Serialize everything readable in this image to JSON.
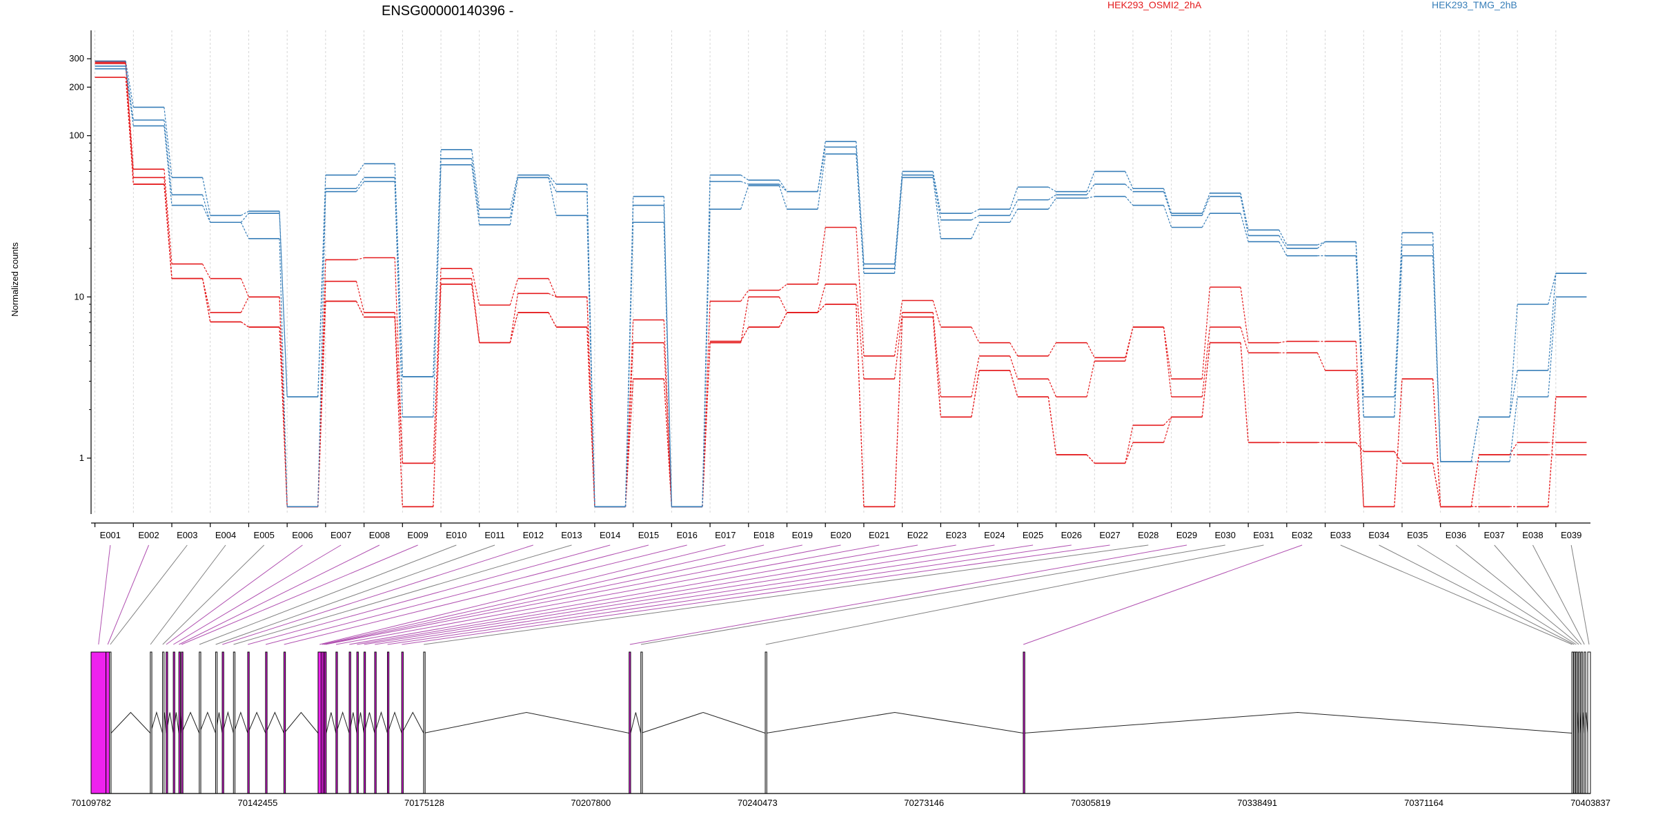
{
  "chart_data": {
    "type": "line",
    "title": "ENSG00000140396 -",
    "ylabel": "Normalized counts",
    "xlabel": "",
    "yscale": "log",
    "ylim": [
      0.45,
      450
    ],
    "yticks": [
      1,
      10,
      100,
      200,
      300
    ],
    "grid": "vertical dotted",
    "legend_placement": "top-right",
    "categories": [
      "E001",
      "E002",
      "E003",
      "E004",
      "E005",
      "E006",
      "E007",
      "E008",
      "E009",
      "E010",
      "E011",
      "E012",
      "E013",
      "E014",
      "E015",
      "E016",
      "E017",
      "E018",
      "E019",
      "E020",
      "E021",
      "E022",
      "E023",
      "E024",
      "E025",
      "E026",
      "E027",
      "E028",
      "E029",
      "E030",
      "E031",
      "E032",
      "E033",
      "E034",
      "E035",
      "E036",
      "E037",
      "E038",
      "E039"
    ],
    "conditions": [
      {
        "name": "HEK293_OSMI2_2hA",
        "color": "#e41a1c"
      },
      {
        "name": "HEK293_TMG_2hB",
        "color": "#377eb8"
      }
    ],
    "series": [
      {
        "condition": 0,
        "values": [
          290,
          62,
          16,
          13,
          10,
          0.5,
          17,
          17.5,
          0.93,
          15,
          8.9,
          13,
          10,
          0.5,
          7.2,
          0.5,
          9.4,
          11,
          12,
          27,
          4.3,
          9.5,
          6.5,
          5.2,
          4.3,
          5.2,
          4.2,
          6.5,
          3.1,
          11.5,
          5.2,
          5.3,
          5.3,
          0.5,
          3.1,
          0.5,
          0.5,
          0.5,
          2.4
        ]
      },
      {
        "condition": 0,
        "values": [
          285,
          55,
          13,
          8,
          10,
          0.5,
          12.5,
          8,
          0.93,
          13,
          5.2,
          10.5,
          10,
          0.5,
          5.2,
          0.5,
          5.2,
          10,
          8,
          12,
          3.1,
          8,
          2.4,
          4.3,
          3.1,
          2.4,
          4,
          6.5,
          2.4,
          6.5,
          4.5,
          4.5,
          3.5,
          0.5,
          3.1,
          0.5,
          0.5,
          0.5,
          2.4
        ]
      },
      {
        "condition": 0,
        "values": [
          280,
          50,
          13,
          7,
          6.5,
          0.5,
          9.4,
          7.5,
          0.5,
          12,
          5.2,
          8,
          6.5,
          0.5,
          3.1,
          0.5,
          5.3,
          6.5,
          8,
          9,
          0.5,
          7.5,
          1.8,
          3.5,
          2.4,
          1.05,
          0.93,
          1.25,
          1.8,
          5.2,
          1.25,
          1.25,
          1.25,
          1.1,
          0.93,
          0.5,
          1.05,
          1.25,
          1.25
        ]
      },
      {
        "condition": 0,
        "values": [
          230,
          50,
          13,
          7,
          6.5,
          0.5,
          9.4,
          7.5,
          0.5,
          12,
          5.2,
          8,
          6.5,
          0.5,
          3.1,
          0.5,
          5.3,
          6.5,
          8,
          9,
          0.5,
          7.5,
          1.8,
          3.5,
          2.4,
          1.05,
          0.93,
          1.6,
          1.8,
          5.2,
          1.25,
          1.25,
          1.25,
          1.1,
          0.93,
          0.5,
          1.05,
          1.05,
          1.05
        ]
      },
      {
        "condition": 1,
        "values": [
          290,
          150,
          55,
          32,
          34,
          2.4,
          57,
          67,
          3.2,
          82,
          35,
          57,
          50,
          0.5,
          42,
          0.5,
          57,
          53,
          45,
          92,
          16,
          60,
          33,
          35,
          48,
          45,
          60,
          47,
          33,
          44,
          26,
          21,
          22,
          2.4,
          25,
          0.95,
          1.8,
          9,
          14
        ]
      },
      {
        "condition": 1,
        "values": [
          270,
          125,
          43,
          29,
          33,
          2.4,
          47,
          55,
          3.2,
          72,
          31,
          55,
          45,
          0.5,
          37,
          0.5,
          52,
          50,
          45,
          85,
          15,
          57,
          30,
          32,
          40,
          43,
          50,
          45,
          32,
          42,
          24,
          20,
          22,
          1.8,
          21,
          0.95,
          1.8,
          3.5,
          14
        ]
      },
      {
        "condition": 1,
        "values": [
          260,
          115,
          37,
          29,
          23,
          0.5,
          45,
          52,
          1.8,
          66,
          28,
          55,
          32,
          0.5,
          29,
          0.5,
          35,
          49,
          35,
          77,
          14,
          55,
          23,
          29,
          35,
          41,
          42,
          37,
          27,
          33,
          22,
          18,
          18,
          1.8,
          18,
          0.95,
          0.95,
          2.4,
          10
        ]
      }
    ],
    "genomic_axis": {
      "ticks": [
        "70109782",
        "70142455",
        "70175128",
        "70207800",
        "70240473",
        "70273146",
        "70305819",
        "70338491",
        "70371164",
        "70403837"
      ],
      "range": [
        70109782,
        70403837
      ]
    },
    "exons": [
      {
        "id": "E001",
        "start": 70109782,
        "end": 70112700,
        "dex": true
      },
      {
        "id": "E002",
        "start": 70112700,
        "end": 70113400,
        "dex": true
      },
      {
        "id": "E003",
        "start": 70113400,
        "end": 70113700,
        "dex": false
      },
      {
        "id": "E004",
        "start": 70121400,
        "end": 70121450,
        "dex": false
      },
      {
        "id": "E005",
        "start": 70123800,
        "end": 70123850,
        "dex": false
      },
      {
        "id": "E006",
        "start": 70124500,
        "end": 70124550,
        "dex": true
      },
      {
        "id": "E007",
        "start": 70125900,
        "end": 70125950,
        "dex": true
      },
      {
        "id": "E008",
        "start": 70127000,
        "end": 70127050,
        "dex": true
      },
      {
        "id": "E009",
        "start": 70127500,
        "end": 70127550,
        "dex": true
      },
      {
        "id": "E010",
        "start": 70131000,
        "end": 70131050,
        "dex": false
      },
      {
        "id": "E011",
        "start": 70134200,
        "end": 70134250,
        "dex": false
      },
      {
        "id": "E012",
        "start": 70135500,
        "end": 70135550,
        "dex": true
      },
      {
        "id": "E013",
        "start": 70137700,
        "end": 70137750,
        "dex": false
      },
      {
        "id": "E014",
        "start": 70140500,
        "end": 70140550,
        "dex": true
      },
      {
        "id": "E015",
        "start": 70144000,
        "end": 70144050,
        "dex": true
      },
      {
        "id": "E016",
        "start": 70147600,
        "end": 70147650,
        "dex": true
      },
      {
        "id": "E017",
        "start": 70154300,
        "end": 70154900,
        "dex": true
      },
      {
        "id": "E018",
        "start": 70154900,
        "end": 70155300,
        "dex": true
      },
      {
        "id": "E019",
        "start": 70155300,
        "end": 70155600,
        "dex": true
      },
      {
        "id": "E020",
        "start": 70155600,
        "end": 70155900,
        "dex": true
      },
      {
        "id": "E021",
        "start": 70157800,
        "end": 70157850,
        "dex": true
      },
      {
        "id": "E022",
        "start": 70160400,
        "end": 70160450,
        "dex": true
      },
      {
        "id": "E023",
        "start": 70161900,
        "end": 70161950,
        "dex": true
      },
      {
        "id": "E024",
        "start": 70163300,
        "end": 70163350,
        "dex": true
      },
      {
        "id": "E025",
        "start": 70165400,
        "end": 70165450,
        "dex": true
      },
      {
        "id": "E026",
        "start": 70167900,
        "end": 70167950,
        "dex": true
      },
      {
        "id": "E027",
        "start": 70170700,
        "end": 70170750,
        "dex": true
      },
      {
        "id": "E028",
        "start": 70175000,
        "end": 70175050,
        "dex": false
      },
      {
        "id": "E029",
        "start": 70215300,
        "end": 70215600,
        "dex": true
      },
      {
        "id": "E030",
        "start": 70217600,
        "end": 70217650,
        "dex": false
      },
      {
        "id": "E031",
        "start": 70242000,
        "end": 70242200,
        "dex": false
      },
      {
        "id": "E032",
        "start": 70292600,
        "end": 70292650,
        "dex": true
      },
      {
        "id": "E033",
        "start": 70400200,
        "end": 70400300,
        "dex": false
      },
      {
        "id": "E034",
        "start": 70400600,
        "end": 70400700,
        "dex": false
      },
      {
        "id": "E035",
        "start": 70401000,
        "end": 70401100,
        "dex": false
      },
      {
        "id": "E036",
        "start": 70401500,
        "end": 70401600,
        "dex": false
      },
      {
        "id": "E037",
        "start": 70402000,
        "end": 70402100,
        "dex": false
      },
      {
        "id": "E038",
        "start": 70402600,
        "end": 70402700,
        "dex": false
      },
      {
        "id": "E039",
        "start": 70403300,
        "end": 70403837,
        "dex": false
      }
    ],
    "colors": {
      "highlight": "#ee22ee",
      "connector_sig": "#b04fb0",
      "connector_plain": "#808080",
      "grid": "#cccccc"
    }
  }
}
